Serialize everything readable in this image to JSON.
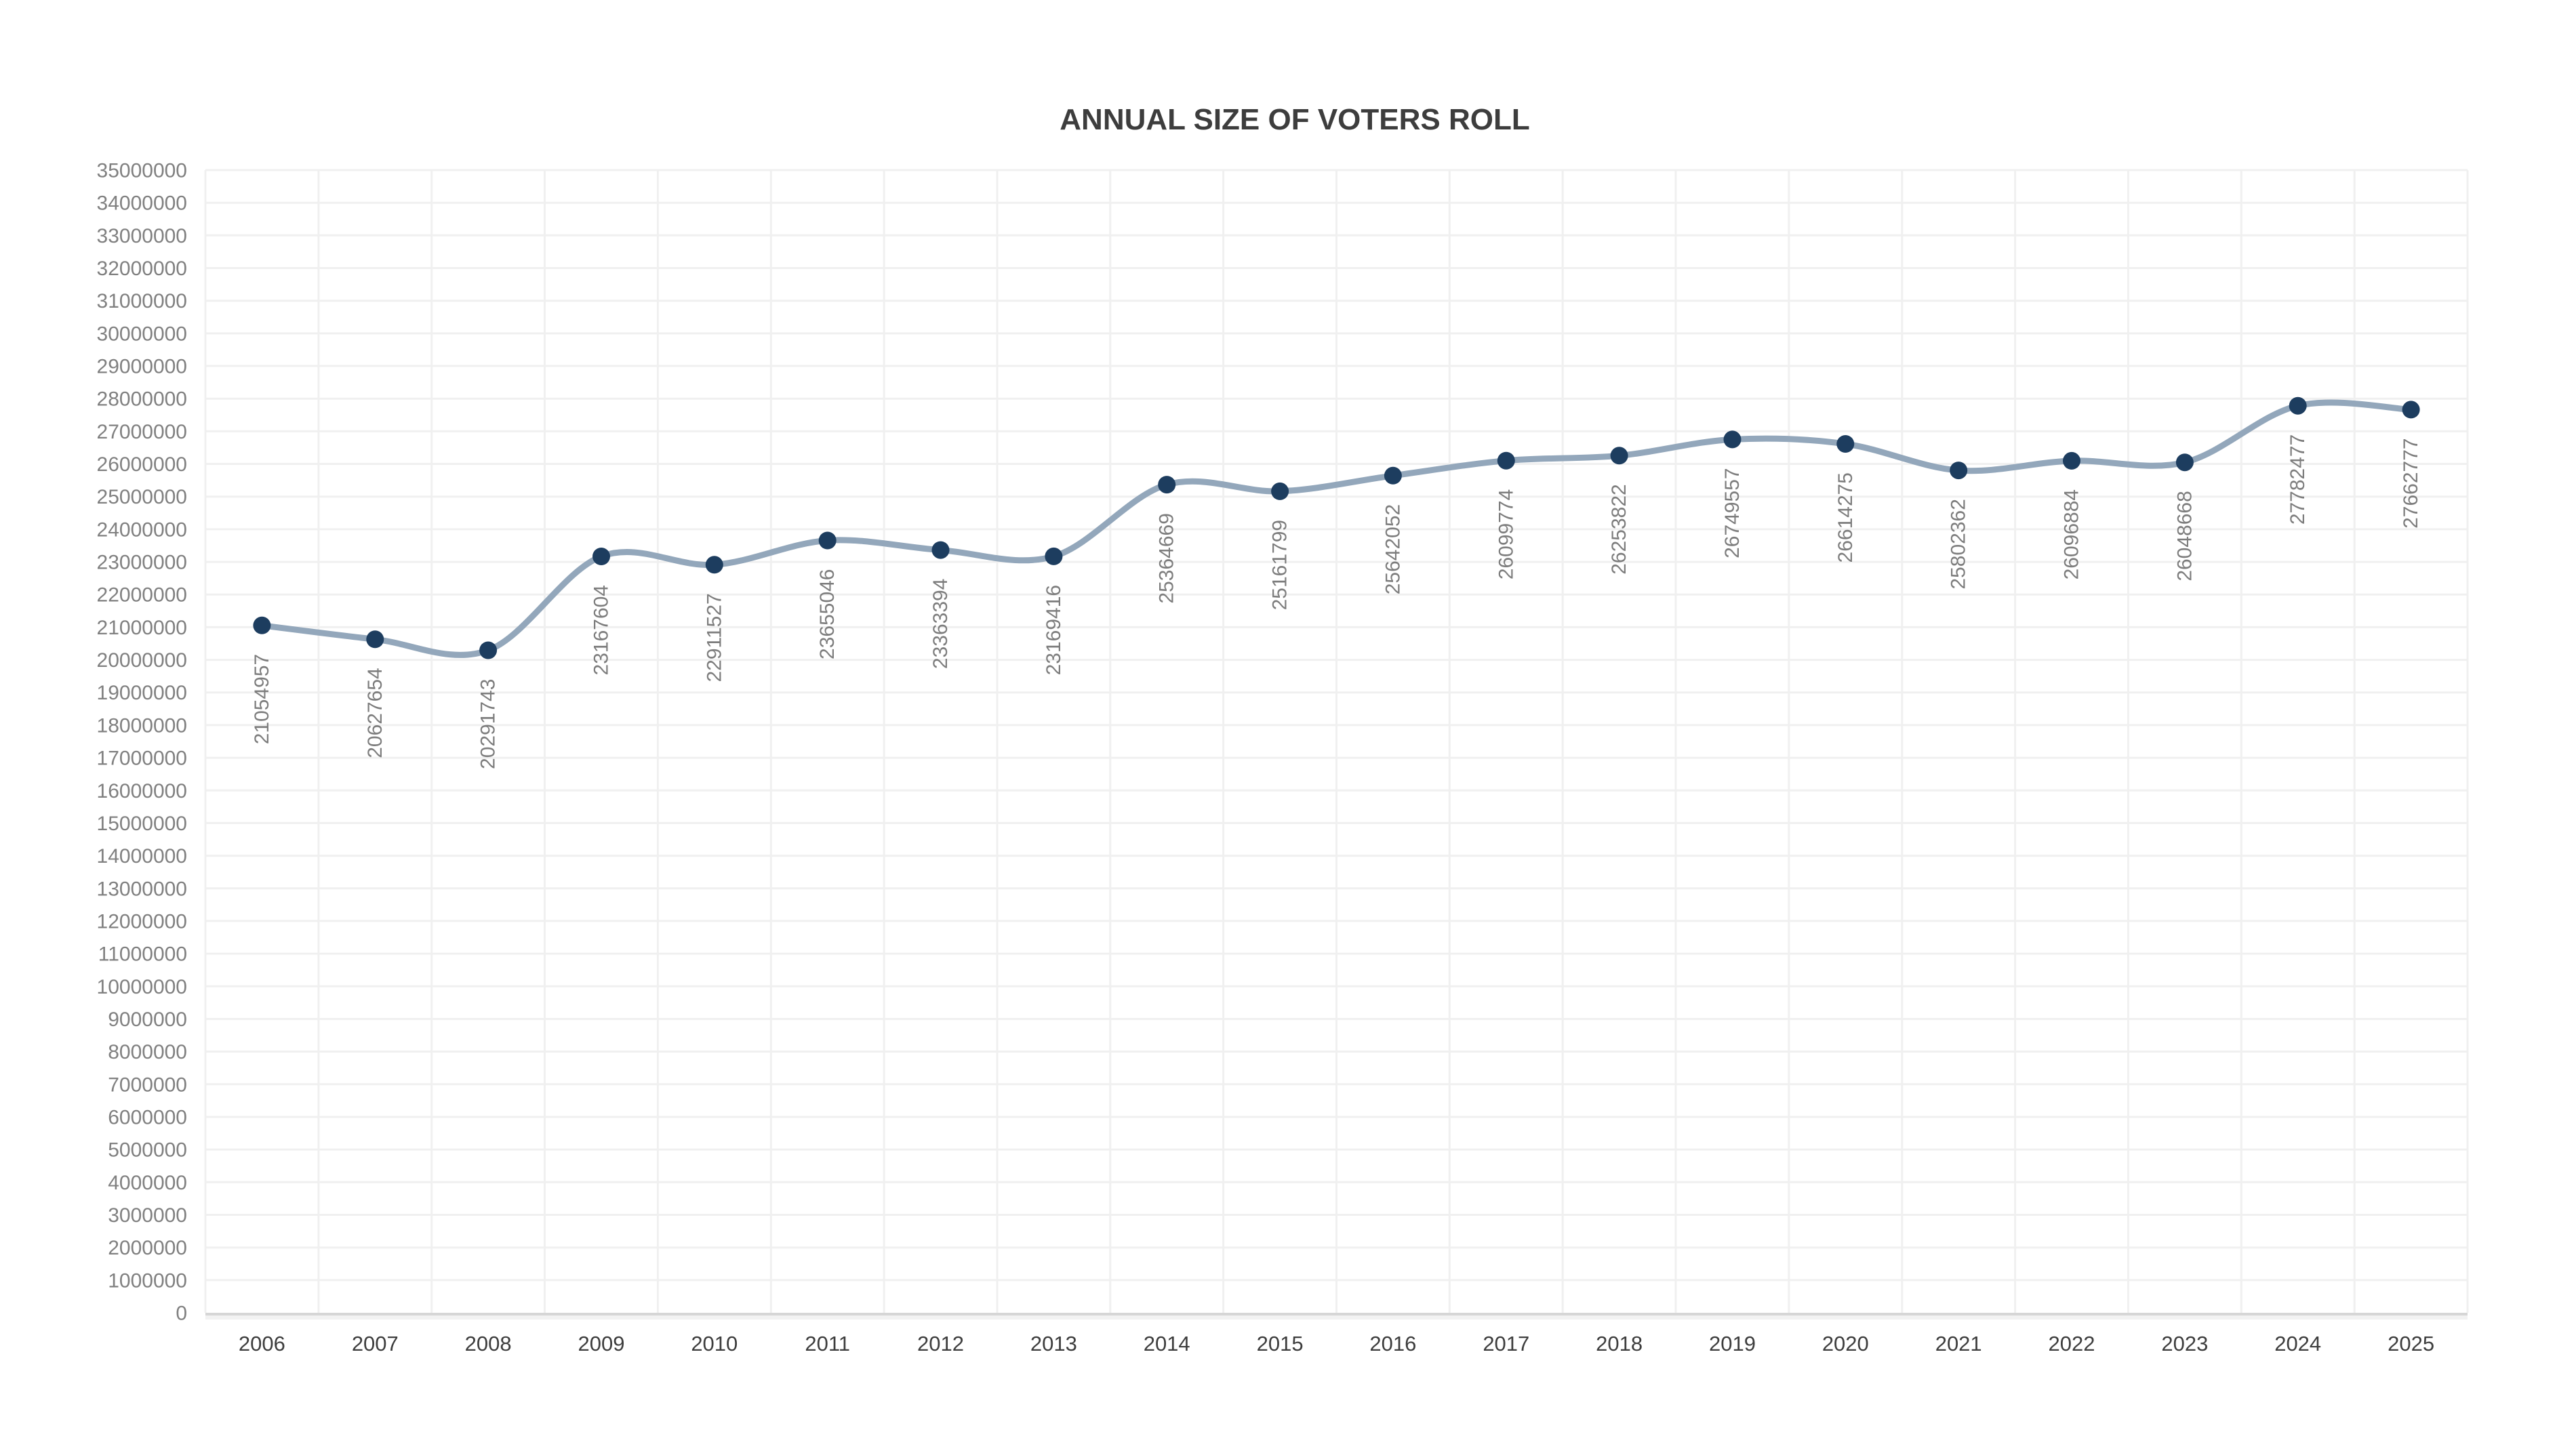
{
  "chart": {
    "title": "ANNUAL SIZE OF VOTERS ROLL"
  },
  "chart_data": {
    "type": "line",
    "title": "ANNUAL SIZE OF VOTERS ROLL",
    "categories": [
      "2006",
      "2007",
      "2008",
      "2009",
      "2010",
      "2011",
      "2012",
      "2013",
      "2014",
      "2015",
      "2016",
      "2017",
      "2018",
      "2019",
      "2020",
      "2021",
      "2022",
      "2023",
      "2024",
      "2025"
    ],
    "values": [
      21054957,
      20627654,
      20291743,
      23167604,
      22911527,
      23655046,
      23363394,
      23169416,
      25364669,
      25161799,
      25642052,
      26099774,
      26253822,
      26749557,
      26614275,
      25802362,
      26096884,
      26048668,
      27782477,
      27662777
    ],
    "xlabel": "",
    "ylabel": "",
    "ylim": [
      0,
      35000000
    ],
    "y_tick_step": 1000000,
    "grid": true,
    "legend": "none",
    "line_style": "smooth",
    "point_labels": "raw-value",
    "point_label_rotation": -90,
    "colors": {
      "line": "#93a7bb",
      "marker": "#1d3d5f",
      "title_text": "#3d3d3d",
      "axis_text": "#808080",
      "x_axis_text": "#3d3d3d",
      "point_label_text": "#7d7d7d",
      "gridline": "#f0f0f0",
      "axis_line": "#d6d6d6"
    }
  }
}
